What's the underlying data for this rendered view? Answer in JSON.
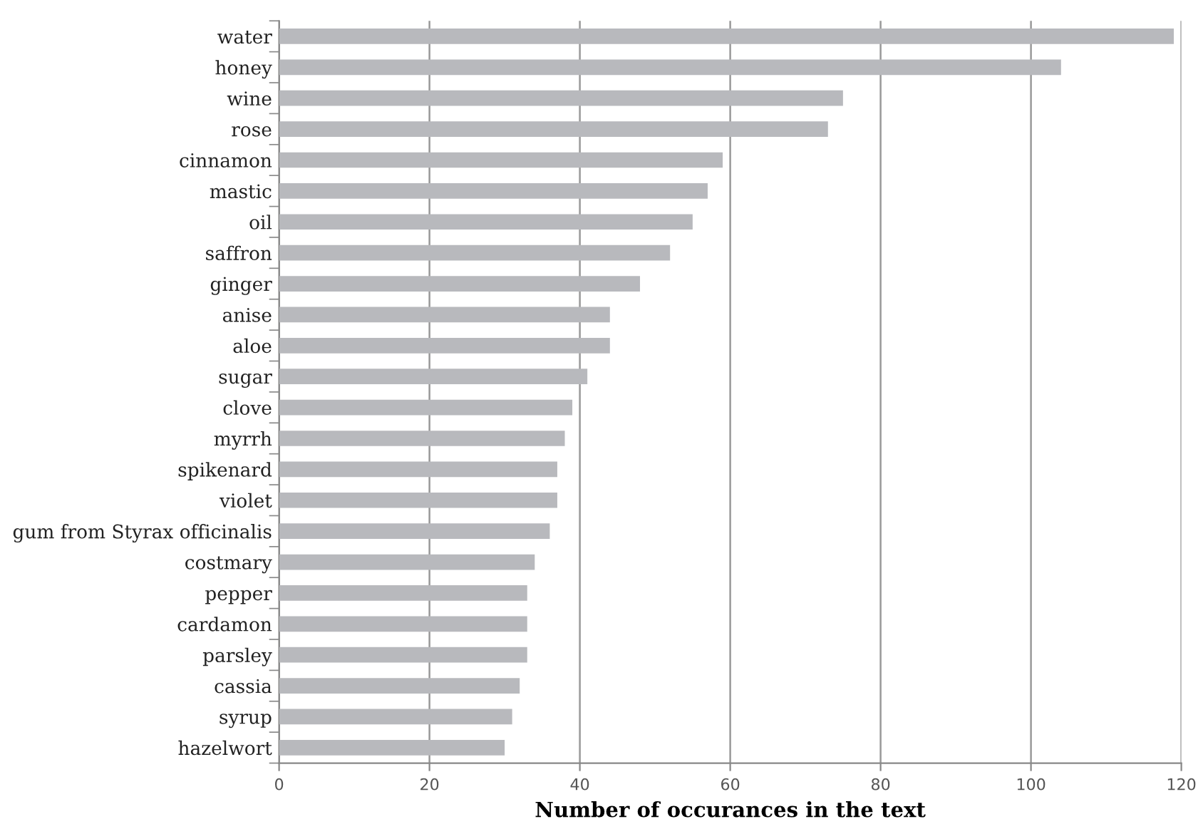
{
  "chart_data": {
    "type": "bar",
    "orientation": "horizontal",
    "xlabel": "Number of occurances in the text",
    "categories": [
      "water",
      "honey",
      "wine",
      "rose",
      "cinnamon",
      "mastic",
      "oil",
      "saffron",
      "ginger",
      "anise",
      "aloe",
      "sugar",
      "clove",
      "myrrh",
      "spikenard",
      "violet",
      "gum from Styrax officinalis",
      "costmary",
      "pepper",
      "cardamon",
      "parsley",
      "cassia",
      "syrup",
      "hazelwort"
    ],
    "values": [
      119,
      104,
      75,
      73,
      59,
      57,
      55,
      52,
      48,
      44,
      44,
      41,
      39,
      38,
      37,
      37,
      36,
      34,
      33,
      33,
      33,
      32,
      31,
      30
    ],
    "color": "#b8b9bd",
    "xlim": [
      0,
      120
    ],
    "xticks": [
      0,
      20,
      40,
      60,
      80,
      100,
      120
    ],
    "grid": "x",
    "legend": false
  }
}
